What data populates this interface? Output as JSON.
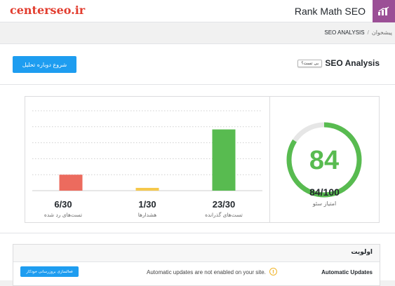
{
  "watermark": "centerseo.ir",
  "header": {
    "title": "Rank Math SEO",
    "logo_icon": "rank-math-logo-icon"
  },
  "breadcrumb": {
    "home": "پیشخوان",
    "separator": "/",
    "current": "SEO ANALYSIS"
  },
  "analysis": {
    "title": "SEO Analysis",
    "beta_label": "بی تست؟",
    "reanalyze_label": "شروع دوباره تحلیل"
  },
  "colors": {
    "accent": "#1e9df0",
    "pass": "#58bb50",
    "warn": "#f5c84c",
    "fail": "#ec6b5e",
    "gauge_track": "#e6e6e6"
  },
  "score": {
    "value": 84,
    "max": 100,
    "display": "84/100",
    "label": "امتیاز سئو"
  },
  "chart_data": {
    "type": "bar",
    "categories": [
      "تست‌های رد شده",
      "هشدارها",
      "تست‌های گذرانده"
    ],
    "values": [
      6,
      1,
      23
    ],
    "max": 30,
    "ylim": [
      0,
      30
    ],
    "displays": [
      "6/30",
      "1/30",
      "23/30"
    ],
    "colors": [
      "#ec6b5e",
      "#f5c84c",
      "#58bb50"
    ],
    "grid": true
  },
  "priority": {
    "title": "اولویت",
    "rows": [
      {
        "label": "Automatic Updates",
        "message": "Automatic updates are not enabled on your site.",
        "button": "فعالسازی بروزرسانی خودکار"
      }
    ]
  }
}
